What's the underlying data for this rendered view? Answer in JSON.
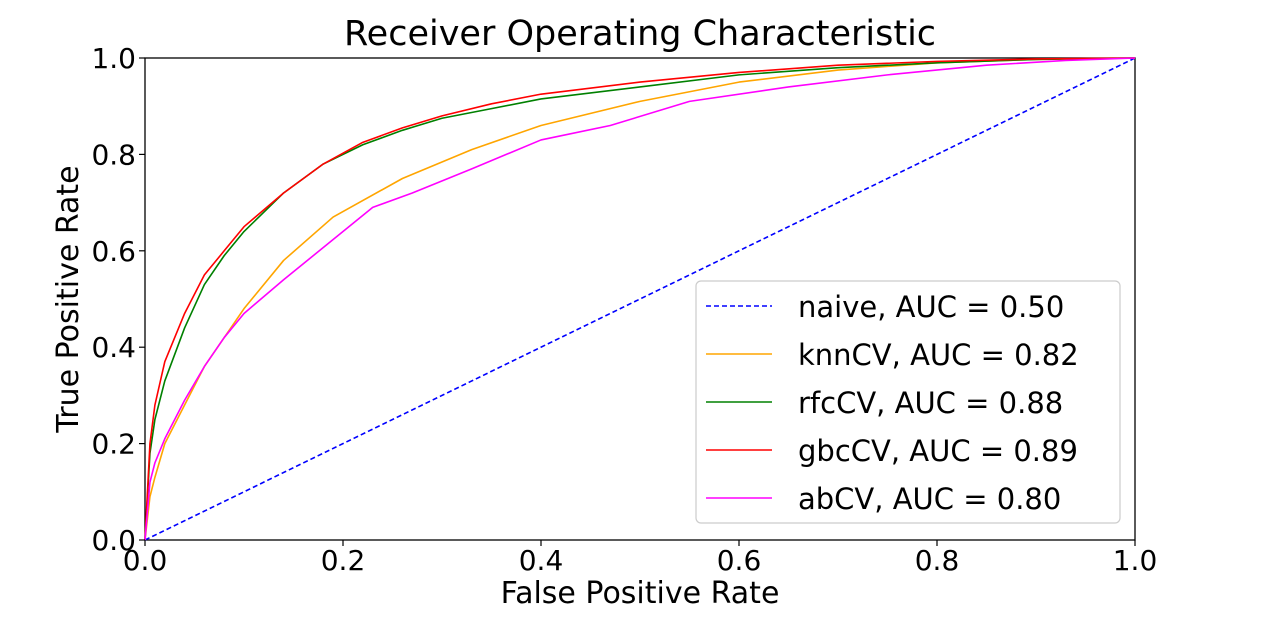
{
  "chart_data": {
    "type": "line",
    "title": "Receiver Operating Characteristic",
    "xlabel": "False Positive Rate",
    "ylabel": "True Positive Rate",
    "xlim": [
      0,
      1
    ],
    "ylim": [
      0,
      1
    ],
    "xticks": [
      "0.0",
      "0.2",
      "0.4",
      "0.6",
      "0.8",
      "1.0"
    ],
    "yticks": [
      "0.0",
      "0.2",
      "0.4",
      "0.6",
      "0.8",
      "1.0"
    ],
    "grid": false,
    "legend_position": "lower-right",
    "series": [
      {
        "name": "naive, AUC = 0.50",
        "color": "#0000ff",
        "dashed": true,
        "points": [
          [
            0,
            0
          ],
          [
            1,
            1
          ]
        ]
      },
      {
        "name": "knnCV, AUC = 0.82",
        "color": "#ffa500",
        "dashed": false,
        "points": [
          [
            0,
            0
          ],
          [
            0.005,
            0.09
          ],
          [
            0.01,
            0.13
          ],
          [
            0.02,
            0.2
          ],
          [
            0.04,
            0.28
          ],
          [
            0.06,
            0.36
          ],
          [
            0.08,
            0.42
          ],
          [
            0.1,
            0.48
          ],
          [
            0.14,
            0.58
          ],
          [
            0.19,
            0.67
          ],
          [
            0.26,
            0.75
          ],
          [
            0.33,
            0.81
          ],
          [
            0.4,
            0.86
          ],
          [
            0.5,
            0.91
          ],
          [
            0.6,
            0.95
          ],
          [
            0.7,
            0.975
          ],
          [
            0.8,
            0.99
          ],
          [
            0.9,
            0.997
          ],
          [
            1,
            1
          ]
        ]
      },
      {
        "name": "rfcCV, AUC = 0.88",
        "color": "#008000",
        "dashed": false,
        "points": [
          [
            0,
            0
          ],
          [
            0.005,
            0.18
          ],
          [
            0.01,
            0.25
          ],
          [
            0.02,
            0.33
          ],
          [
            0.04,
            0.44
          ],
          [
            0.06,
            0.53
          ],
          [
            0.08,
            0.59
          ],
          [
            0.1,
            0.64
          ],
          [
            0.14,
            0.72
          ],
          [
            0.18,
            0.78
          ],
          [
            0.22,
            0.82
          ],
          [
            0.26,
            0.85
          ],
          [
            0.3,
            0.875
          ],
          [
            0.35,
            0.895
          ],
          [
            0.4,
            0.915
          ],
          [
            0.5,
            0.94
          ],
          [
            0.6,
            0.965
          ],
          [
            0.7,
            0.98
          ],
          [
            0.8,
            0.99
          ],
          [
            0.9,
            0.997
          ],
          [
            1,
            1
          ]
        ]
      },
      {
        "name": "gbcCV, AUC = 0.89",
        "color": "#ff0000",
        "dashed": false,
        "points": [
          [
            0,
            0
          ],
          [
            0.005,
            0.2
          ],
          [
            0.01,
            0.28
          ],
          [
            0.02,
            0.37
          ],
          [
            0.04,
            0.47
          ],
          [
            0.06,
            0.55
          ],
          [
            0.08,
            0.6
          ],
          [
            0.1,
            0.65
          ],
          [
            0.14,
            0.72
          ],
          [
            0.18,
            0.78
          ],
          [
            0.22,
            0.825
          ],
          [
            0.26,
            0.855
          ],
          [
            0.3,
            0.88
          ],
          [
            0.35,
            0.905
          ],
          [
            0.4,
            0.925
          ],
          [
            0.5,
            0.95
          ],
          [
            0.6,
            0.97
          ],
          [
            0.7,
            0.985
          ],
          [
            0.8,
            0.993
          ],
          [
            0.9,
            0.998
          ],
          [
            1,
            1
          ]
        ]
      },
      {
        "name": "abCV, AUC = 0.80",
        "color": "#ff00ff",
        "dashed": false,
        "points": [
          [
            0,
            0
          ],
          [
            0.005,
            0.12
          ],
          [
            0.01,
            0.16
          ],
          [
            0.02,
            0.21
          ],
          [
            0.04,
            0.29
          ],
          [
            0.06,
            0.36
          ],
          [
            0.08,
            0.42
          ],
          [
            0.1,
            0.47
          ],
          [
            0.14,
            0.54
          ],
          [
            0.17,
            0.59
          ],
          [
            0.2,
            0.64
          ],
          [
            0.23,
            0.69
          ],
          [
            0.27,
            0.72
          ],
          [
            0.33,
            0.77
          ],
          [
            0.4,
            0.83
          ],
          [
            0.47,
            0.86
          ],
          [
            0.55,
            0.91
          ],
          [
            0.65,
            0.94
          ],
          [
            0.75,
            0.965
          ],
          [
            0.85,
            0.985
          ],
          [
            0.93,
            0.995
          ],
          [
            1,
            1
          ]
        ]
      }
    ]
  }
}
